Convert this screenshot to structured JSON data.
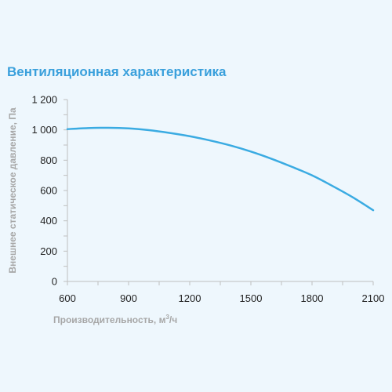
{
  "chart_data": {
    "type": "line",
    "title": "Вентиляционная характеристика",
    "xlabel": "Производительность, м",
    "xlabel_sup": "3",
    "xlabel_suffix": "/ч",
    "ylabel": "Внешнее статическое давление, Па",
    "xlim": [
      600,
      2100
    ],
    "ylim": [
      0,
      1200
    ],
    "x_ticks": [
      600,
      900,
      1200,
      1500,
      1800,
      2100
    ],
    "x_tick_labels": [
      "600",
      "900",
      "1200",
      "1500",
      "1800",
      "2100"
    ],
    "y_ticks": [
      0,
      200,
      400,
      600,
      800,
      1000,
      1200
    ],
    "y_tick_labels": [
      "0",
      "200",
      "400",
      "600",
      "800",
      "1 000",
      "1 200"
    ],
    "grid": false,
    "line_color": "#3aabe2",
    "series": [
      {
        "x": [
          600,
          700,
          800,
          900,
          1000,
          1100,
          1200,
          1300,
          1400,
          1500,
          1600,
          1700,
          1800,
          1900,
          2000,
          2100
        ],
        "values": [
          1005,
          1012,
          1014,
          1010,
          998,
          980,
          958,
          930,
          897,
          857,
          810,
          757,
          700,
          630,
          555,
          470
        ]
      }
    ]
  }
}
